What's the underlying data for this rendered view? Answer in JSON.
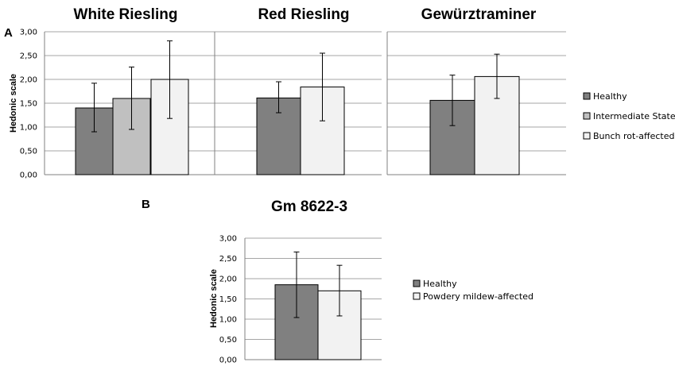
{
  "panel_labels": {
    "a": "A",
    "b": "B"
  },
  "colors": {
    "healthy": "#808080",
    "intermediate": "#c0c0c0",
    "affected": "#f2f2f2",
    "grid": "#a6a6a6",
    "axis": "#808080"
  },
  "chart_data": [
    {
      "type": "bar",
      "title": "White Riesling",
      "ylabel": "Hedonic scale",
      "ylim": [
        0,
        3
      ],
      "yticks": [
        "0,00",
        "0,50",
        "1,00",
        "1,50",
        "2,00",
        "2,50",
        "3,00"
      ],
      "series": [
        {
          "name": "Healthy",
          "value": 1.4,
          "err_low": 0.9,
          "err_high": 1.92,
          "color": "healthy"
        },
        {
          "name": "Intermediate State",
          "value": 1.6,
          "err_low": 0.95,
          "err_high": 2.26,
          "color": "intermediate"
        },
        {
          "name": "Bunch rot-affected",
          "value": 2.0,
          "err_low": 1.18,
          "err_high": 2.81,
          "color": "affected"
        }
      ]
    },
    {
      "type": "bar",
      "title": "Red Riesling",
      "ylim": [
        0,
        3
      ],
      "series": [
        {
          "name": "Healthy",
          "value": 1.61,
          "err_low": 1.3,
          "err_high": 1.95,
          "color": "healthy"
        },
        {
          "name": "Bunch rot-affected",
          "value": 1.84,
          "err_low": 1.13,
          "err_high": 2.55,
          "color": "affected"
        }
      ]
    },
    {
      "type": "bar",
      "title": "Gewürztraminer",
      "ylim": [
        0,
        3
      ],
      "series": [
        {
          "name": "Healthy",
          "value": 1.56,
          "err_low": 1.03,
          "err_high": 2.09,
          "color": "healthy"
        },
        {
          "name": "Bunch rot-affected",
          "value": 2.06,
          "err_low": 1.6,
          "err_high": 2.53,
          "color": "affected"
        }
      ]
    },
    {
      "type": "bar",
      "title": "Gm 8622-3",
      "ylabel": "Hedonic scale",
      "ylim": [
        0,
        3
      ],
      "yticks": [
        "0,00",
        "0,50",
        "1,00",
        "1,50",
        "2,00",
        "2,50",
        "3,00"
      ],
      "series": [
        {
          "name": "Healthy",
          "value": 1.85,
          "err_low": 1.04,
          "err_high": 2.66,
          "color": "healthy"
        },
        {
          "name": "Powdery mildew-affected",
          "value": 1.7,
          "err_low": 1.08,
          "err_high": 2.33,
          "color": "affected"
        }
      ]
    }
  ],
  "legends": [
    {
      "items": [
        {
          "label": "Healthy",
          "color": "healthy"
        },
        {
          "label": "Intermediate State",
          "color": "intermediate"
        },
        {
          "label": "Bunch rot-affected",
          "color": "affected"
        }
      ]
    },
    {
      "items": [
        {
          "label": "Healthy",
          "color": "healthy"
        },
        {
          "label": "Powdery mildew-affected",
          "color": "affected"
        }
      ]
    }
  ]
}
